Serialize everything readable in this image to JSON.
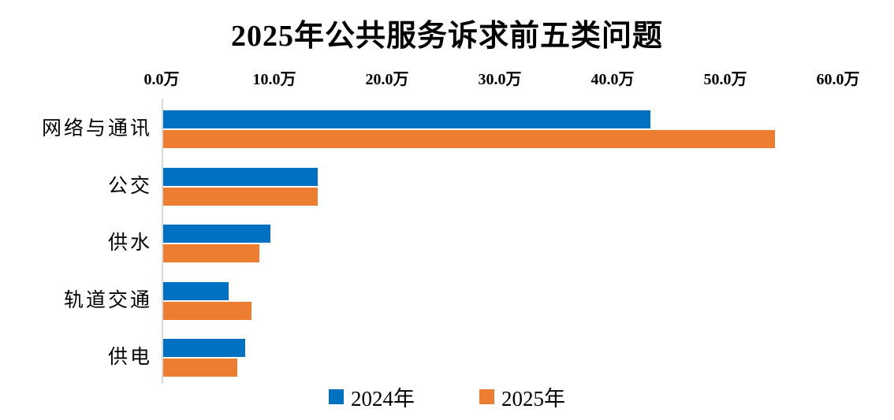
{
  "chart_data": {
    "type": "bar",
    "orientation": "horizontal",
    "title": "2025年公共服务诉求前五类问题",
    "categories": [
      "网络与通讯",
      "公交",
      "供水",
      "轨道交通",
      "供电"
    ],
    "series": [
      {
        "name": "2024年",
        "color": "#0070C0",
        "values": [
          43.2,
          13.7,
          9.5,
          5.8,
          7.3
        ]
      },
      {
        "name": "2025年",
        "color": "#ED7D31",
        "values": [
          54.3,
          13.7,
          8.5,
          7.8,
          6.6
        ]
      }
    ],
    "unit": "万",
    "xlim": [
      0,
      60
    ],
    "x_ticks": [
      0,
      10,
      20,
      30,
      40,
      50,
      60
    ],
    "tick_labels": [
      "0.0万",
      "10.0万",
      "20.0万",
      "30.0万",
      "40.0万",
      "50.0万",
      "60.0万"
    ],
    "xlabel": "",
    "ylabel": "",
    "grid": false,
    "legend_position": "bottom",
    "axis_line_color": "#D9D9D9"
  }
}
